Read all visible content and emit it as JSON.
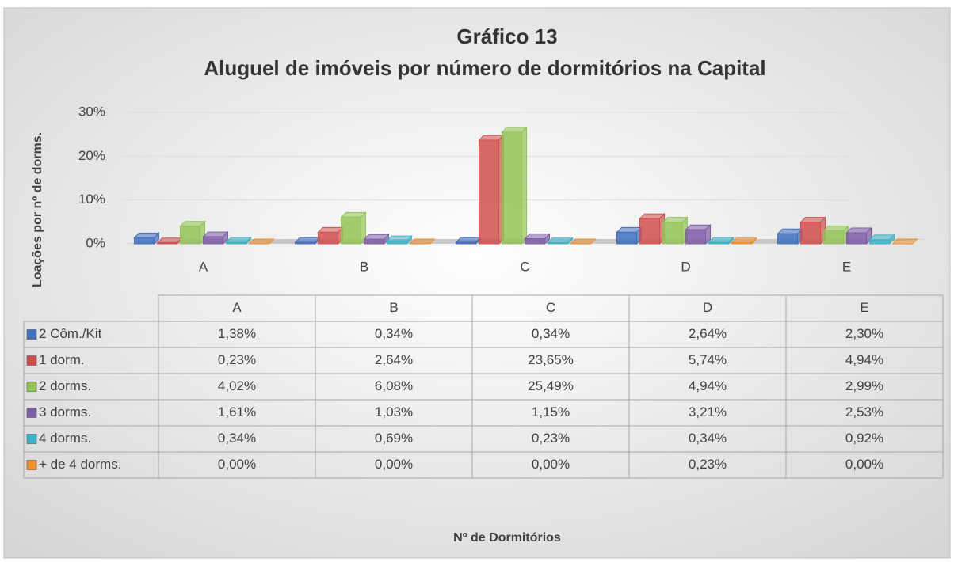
{
  "chart_data": {
    "type": "bar",
    "title": "Gráfico 13",
    "subtitle": "Aluguel de imóveis por número de dormitórios na Capital",
    "y_label": "Loações por nº de dorms.",
    "x_label": "Nº de Dormitórios",
    "categories": [
      "A",
      "B",
      "C",
      "D",
      "E"
    ],
    "ylim": [
      0,
      30
    ],
    "yticks": [
      {
        "value": 0,
        "label": "0%"
      },
      {
        "value": 10,
        "label": "10%"
      },
      {
        "value": 20,
        "label": "20%"
      },
      {
        "value": 30,
        "label": "30%"
      }
    ],
    "grid": true,
    "series": [
      {
        "name": "2 Côm./Kit",
        "color": "#3f6fbf",
        "values": [
          1.38,
          0.34,
          0.34,
          2.64,
          2.3
        ],
        "value_labels": [
          "1,38%",
          "0,34%",
          "0,34%",
          "2,64%",
          "2,30%"
        ]
      },
      {
        "name": "1 dorm.",
        "color": "#d24f4c",
        "values": [
          0.23,
          2.64,
          23.65,
          5.74,
          4.94
        ],
        "value_labels": [
          "0,23%",
          "2,64%",
          "23,65%",
          "5,74%",
          "4,94%"
        ]
      },
      {
        "name": "2 dorms.",
        "color": "#92c353",
        "values": [
          4.02,
          6.08,
          25.49,
          4.94,
          2.99
        ],
        "value_labels": [
          "4,02%",
          "6,08%",
          "25,49%",
          "4,94%",
          "2,99%"
        ]
      },
      {
        "name": "3 dorms.",
        "color": "#7e5ca8",
        "values": [
          1.61,
          1.03,
          1.15,
          3.21,
          2.53
        ],
        "value_labels": [
          "1,61%",
          "1,03%",
          "1,15%",
          "3,21%",
          "2,53%"
        ]
      },
      {
        "name": "4 dorms.",
        "color": "#3bb3c8",
        "values": [
          0.34,
          0.69,
          0.23,
          0.34,
          0.92
        ],
        "value_labels": [
          "0,34%",
          "0,69%",
          "0,23%",
          "0,34%",
          "0,92%"
        ]
      },
      {
        "name": "+ de 4 dorms.",
        "color": "#f28e2b",
        "values": [
          0.0,
          0.0,
          0.0,
          0.23,
          0.0
        ],
        "value_labels": [
          "0,00%",
          "0,00%",
          "0,00%",
          "0,23%",
          "0,00%"
        ]
      }
    ]
  }
}
